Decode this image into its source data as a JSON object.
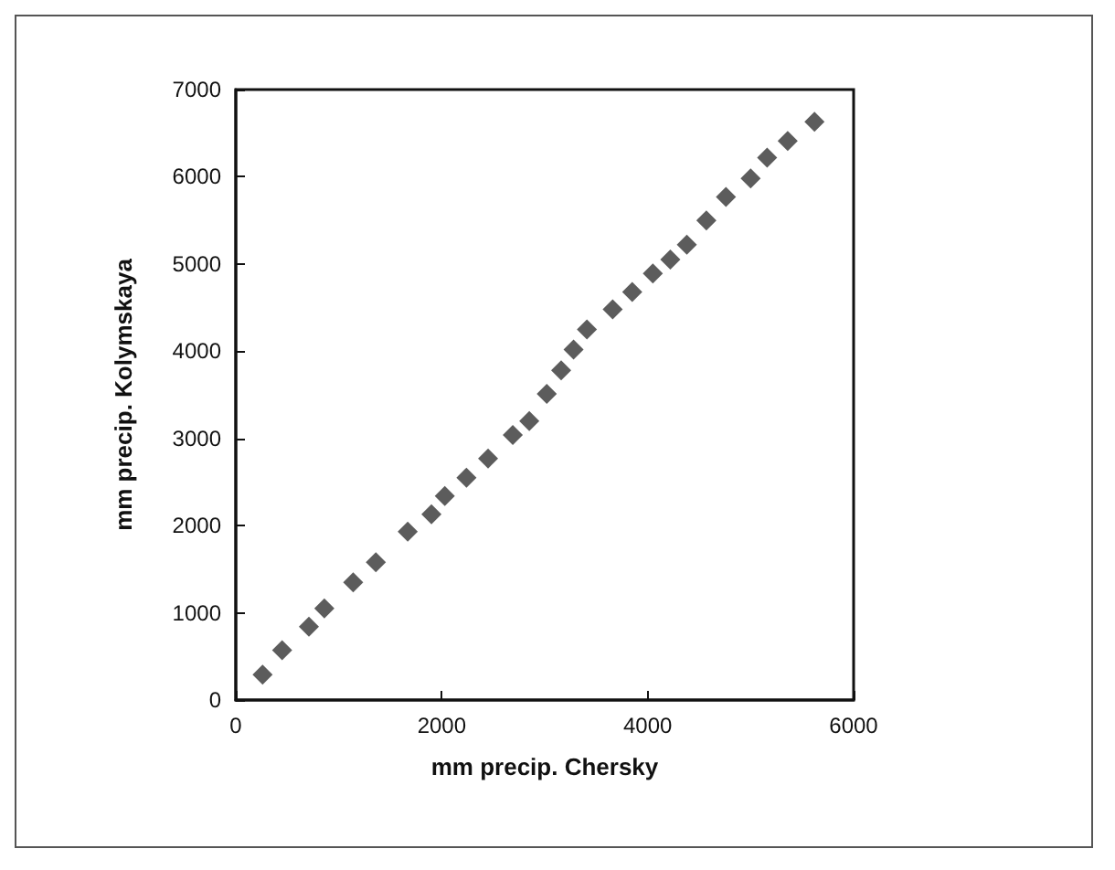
{
  "chart_data": {
    "type": "scatter",
    "xlabel": "mm precip. Chersky",
    "ylabel": "mm precip. Kolymskaya",
    "x": [
      260,
      450,
      710,
      860,
      1140,
      1360,
      1670,
      1900,
      2030,
      2240,
      2450,
      2690,
      2850,
      3020,
      3160,
      3280,
      3410,
      3660,
      3850,
      4050,
      4220,
      4380,
      4570,
      4760,
      5000,
      5160,
      5360,
      5620
    ],
    "values": [
      290,
      570,
      840,
      1050,
      1350,
      1580,
      1930,
      2130,
      2340,
      2550,
      2770,
      3040,
      3200,
      3510,
      3780,
      4020,
      4250,
      4480,
      4680,
      4890,
      5050,
      5220,
      5500,
      5770,
      5980,
      6220,
      6410,
      6630
    ],
    "color": "#333333",
    "marker": "diamond",
    "xlim": [
      0,
      6000
    ],
    "xticks": [
      0,
      2000,
      4000,
      6000
    ],
    "ylim": [
      0,
      7000
    ],
    "yticks": [
      0,
      1000,
      2000,
      3000,
      4000,
      5000,
      6000,
      7000
    ]
  }
}
